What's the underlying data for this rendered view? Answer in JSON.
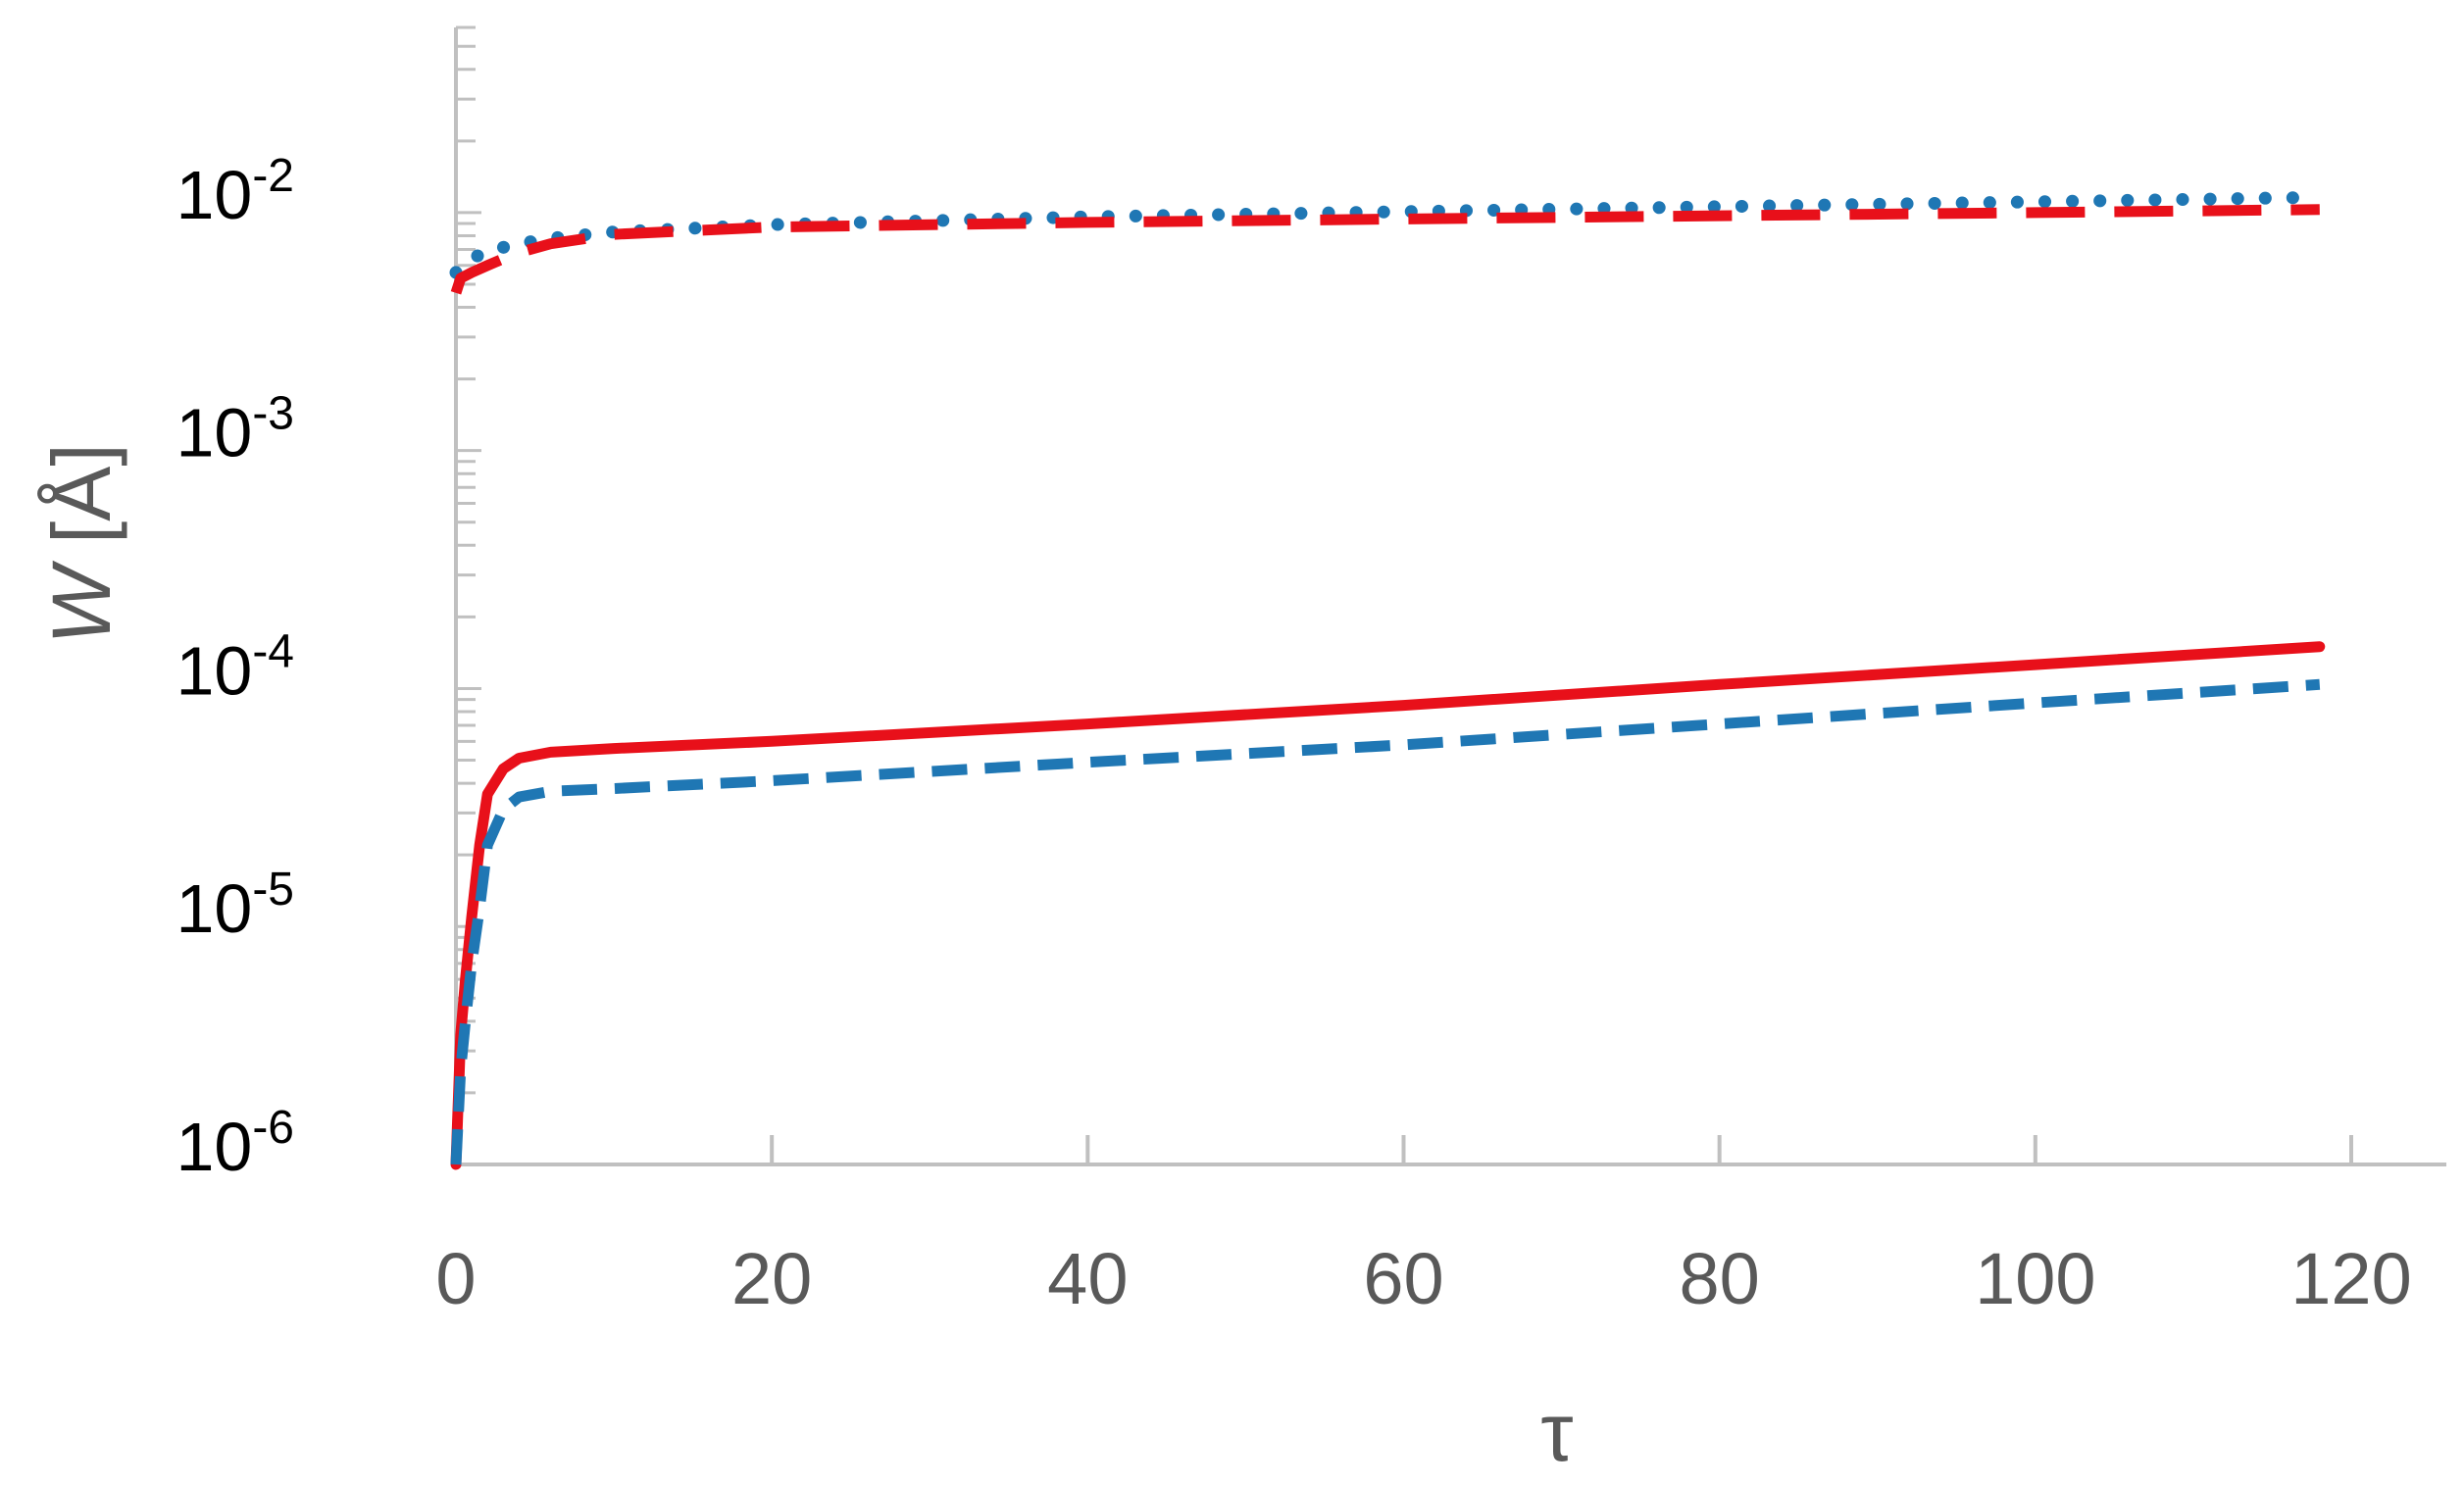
{
  "chart_data": {
    "type": "line",
    "title": "",
    "xlabel": "τ",
    "ylabel": {
      "italic": "W",
      "unit": " [Å]"
    },
    "xlim": [
      0,
      126
    ],
    "ylim": [
      1e-06,
      0.06
    ],
    "yscale": "log",
    "grid": false,
    "legend": "none",
    "x_ticks": [
      {
        "value": 0,
        "label": "0"
      },
      {
        "value": 20,
        "label": "20"
      },
      {
        "value": 40,
        "label": "40"
      },
      {
        "value": 60,
        "label": "60"
      },
      {
        "value": 80,
        "label": "80"
      },
      {
        "value": 100,
        "label": "100"
      },
      {
        "value": 120,
        "label": "120"
      }
    ],
    "y_ticks": [
      {
        "value": 0.01,
        "mantissa": "10",
        "exp": "-2"
      },
      {
        "value": 0.001,
        "mantissa": "10",
        "exp": "-3"
      },
      {
        "value": 0.0001,
        "mantissa": "10",
        "exp": "-4"
      },
      {
        "value": 1e-05,
        "mantissa": "10",
        "exp": "-5"
      },
      {
        "value": 1e-06,
        "mantissa": "10",
        "exp": "-6"
      }
    ],
    "series": [
      {
        "style": "dotted",
        "color": "#1f77b4",
        "x": [
          0,
          0.5,
          1,
          2,
          4,
          6,
          10,
          20,
          40,
          60,
          80,
          100,
          118
        ],
        "values": [
          0.0056,
          0.0061,
          0.0064,
          0.0069,
          0.0074,
          0.0078,
          0.0083,
          0.0089,
          0.0096,
          0.0101,
          0.0106,
          0.0111,
          0.0116
        ]
      },
      {
        "style": "long-dash",
        "color": "#e8101a",
        "x": [
          0,
          0.3,
          1,
          2,
          3,
          4,
          6,
          10,
          20,
          40,
          60,
          80,
          100,
          118
        ],
        "values": [
          0.0046,
          0.0053,
          0.0056,
          0.006,
          0.0064,
          0.0068,
          0.0074,
          0.0081,
          0.0087,
          0.0091,
          0.0094,
          0.0097,
          0.01,
          0.0103
        ]
      },
      {
        "style": "solid",
        "color": "#e8101a",
        "x": [
          0,
          0.3,
          0.6,
          1,
          1.5,
          2,
          3,
          4,
          6,
          10,
          20,
          40,
          60,
          80,
          100,
          118
        ],
        "values": [
          1e-06,
          3.5e-06,
          6e-06,
          1.1e-05,
          2.2e-05,
          3.6e-05,
          4.6e-05,
          5.1e-05,
          5.4e-05,
          5.6e-05,
          6e-05,
          7.1e-05,
          8.5e-05,
          0.000104,
          0.000126,
          0.00015
        ]
      },
      {
        "style": "dashed",
        "color": "#1f77b4",
        "x": [
          0,
          0.3,
          0.6,
          1,
          1.5,
          2,
          3,
          4,
          6,
          10,
          20,
          40,
          60,
          80,
          100,
          118
        ],
        "values": [
          1e-06,
          2.5e-06,
          4e-06,
          7e-06,
          1.2e-05,
          2.2e-05,
          3.1e-05,
          3.5e-05,
          3.7e-05,
          3.8e-05,
          4.1e-05,
          4.9e-05,
          5.8e-05,
          7.1e-05,
          8.7e-05,
          0.000104
        ]
      }
    ]
  }
}
